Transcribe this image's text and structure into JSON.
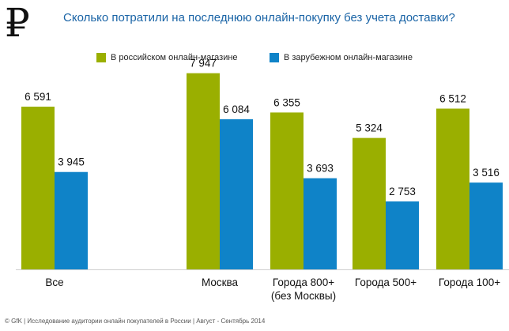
{
  "currency_symbol": "₽",
  "colors": {
    "russian": "#9aaf00",
    "foreign": "#0f83c8",
    "title": "#1a64a6"
  },
  "footer": "© GfK | Исследование аудитории онлайн покупателей в России | Август - Сентябрь 2014",
  "chart_data": {
    "type": "bar",
    "title": "Сколько потратили  на последнюю  онлайн-покупку  без учета доставки?",
    "xlabel": "",
    "ylabel": "",
    "legend_placement": "top",
    "grid": false,
    "ylim": [
      0,
      8000
    ],
    "categories": [
      "Все",
      "Москва",
      "Города 800+ (без Москвы)",
      "Города 500+",
      "Города 100+"
    ],
    "category_lines": [
      [
        "Все"
      ],
      [
        "Москва"
      ],
      [
        "Города 800+",
        "(без Москвы)"
      ],
      [
        "Города 500+"
      ],
      [
        "Города 100+"
      ]
    ],
    "series": [
      {
        "name": "В российском онлайн-магазине",
        "values": [
          6591,
          7947,
          6355,
          5324,
          6512
        ],
        "labels": [
          "6 591",
          "7 947",
          "6 355",
          "5 324",
          "6 512"
        ]
      },
      {
        "name": "В зарубежном онлайн-магазине",
        "values": [
          3945,
          6084,
          3693,
          2753,
          3516
        ],
        "labels": [
          "3 945",
          "6 084",
          "3 693",
          "2 753",
          "3 516"
        ]
      }
    ]
  }
}
